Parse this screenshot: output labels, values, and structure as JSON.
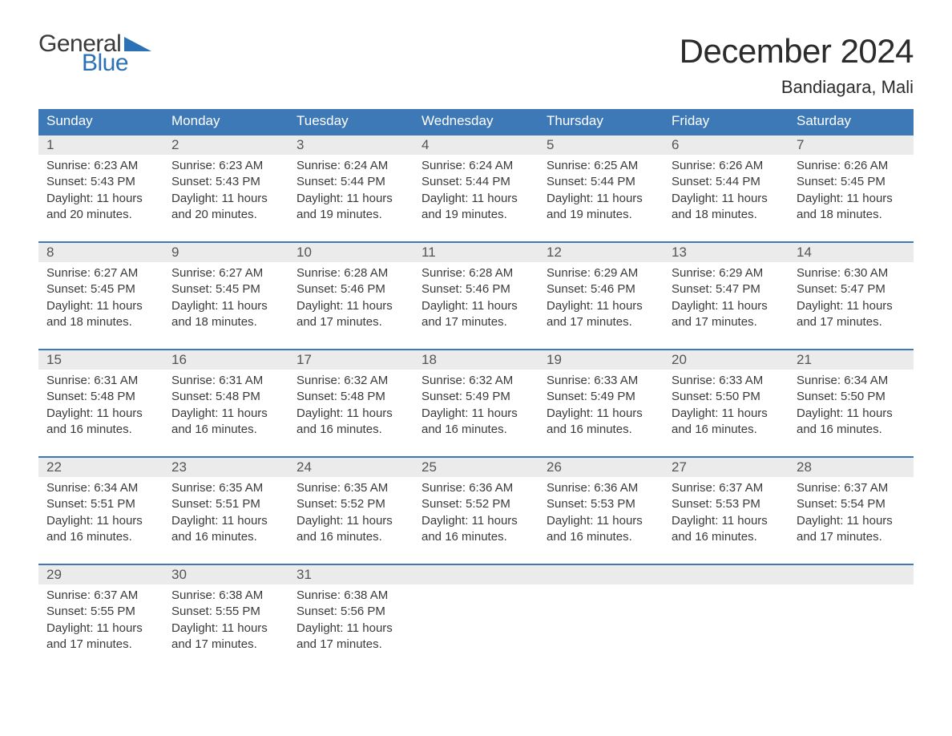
{
  "brand": {
    "word1": "General",
    "word2": "Blue",
    "accent_color": "#2a72b5",
    "text_color": "#3a3a3a"
  },
  "header": {
    "month_title": "December 2024",
    "location": "Bandiagara, Mali"
  },
  "colors": {
    "dow_bg": "#3d79b6",
    "dow_text": "#ffffff",
    "week_border": "#3d79b6",
    "daynum_bg": "#ebebeb",
    "daynum_text": "#555555",
    "body_text": "#3a3a3a",
    "page_bg": "#ffffff"
  },
  "days_of_week": [
    "Sunday",
    "Monday",
    "Tuesday",
    "Wednesday",
    "Thursday",
    "Friday",
    "Saturday"
  ],
  "weeks": [
    [
      {
        "n": "1",
        "sr": "Sunrise: 6:23 AM",
        "ss": "Sunset: 5:43 PM",
        "d1": "Daylight: 11 hours",
        "d2": "and 20 minutes."
      },
      {
        "n": "2",
        "sr": "Sunrise: 6:23 AM",
        "ss": "Sunset: 5:43 PM",
        "d1": "Daylight: 11 hours",
        "d2": "and 20 minutes."
      },
      {
        "n": "3",
        "sr": "Sunrise: 6:24 AM",
        "ss": "Sunset: 5:44 PM",
        "d1": "Daylight: 11 hours",
        "d2": "and 19 minutes."
      },
      {
        "n": "4",
        "sr": "Sunrise: 6:24 AM",
        "ss": "Sunset: 5:44 PM",
        "d1": "Daylight: 11 hours",
        "d2": "and 19 minutes."
      },
      {
        "n": "5",
        "sr": "Sunrise: 6:25 AM",
        "ss": "Sunset: 5:44 PM",
        "d1": "Daylight: 11 hours",
        "d2": "and 19 minutes."
      },
      {
        "n": "6",
        "sr": "Sunrise: 6:26 AM",
        "ss": "Sunset: 5:44 PM",
        "d1": "Daylight: 11 hours",
        "d2": "and 18 minutes."
      },
      {
        "n": "7",
        "sr": "Sunrise: 6:26 AM",
        "ss": "Sunset: 5:45 PM",
        "d1": "Daylight: 11 hours",
        "d2": "and 18 minutes."
      }
    ],
    [
      {
        "n": "8",
        "sr": "Sunrise: 6:27 AM",
        "ss": "Sunset: 5:45 PM",
        "d1": "Daylight: 11 hours",
        "d2": "and 18 minutes."
      },
      {
        "n": "9",
        "sr": "Sunrise: 6:27 AM",
        "ss": "Sunset: 5:45 PM",
        "d1": "Daylight: 11 hours",
        "d2": "and 18 minutes."
      },
      {
        "n": "10",
        "sr": "Sunrise: 6:28 AM",
        "ss": "Sunset: 5:46 PM",
        "d1": "Daylight: 11 hours",
        "d2": "and 17 minutes."
      },
      {
        "n": "11",
        "sr": "Sunrise: 6:28 AM",
        "ss": "Sunset: 5:46 PM",
        "d1": "Daylight: 11 hours",
        "d2": "and 17 minutes."
      },
      {
        "n": "12",
        "sr": "Sunrise: 6:29 AM",
        "ss": "Sunset: 5:46 PM",
        "d1": "Daylight: 11 hours",
        "d2": "and 17 minutes."
      },
      {
        "n": "13",
        "sr": "Sunrise: 6:29 AM",
        "ss": "Sunset: 5:47 PM",
        "d1": "Daylight: 11 hours",
        "d2": "and 17 minutes."
      },
      {
        "n": "14",
        "sr": "Sunrise: 6:30 AM",
        "ss": "Sunset: 5:47 PM",
        "d1": "Daylight: 11 hours",
        "d2": "and 17 minutes."
      }
    ],
    [
      {
        "n": "15",
        "sr": "Sunrise: 6:31 AM",
        "ss": "Sunset: 5:48 PM",
        "d1": "Daylight: 11 hours",
        "d2": "and 16 minutes."
      },
      {
        "n": "16",
        "sr": "Sunrise: 6:31 AM",
        "ss": "Sunset: 5:48 PM",
        "d1": "Daylight: 11 hours",
        "d2": "and 16 minutes."
      },
      {
        "n": "17",
        "sr": "Sunrise: 6:32 AM",
        "ss": "Sunset: 5:48 PM",
        "d1": "Daylight: 11 hours",
        "d2": "and 16 minutes."
      },
      {
        "n": "18",
        "sr": "Sunrise: 6:32 AM",
        "ss": "Sunset: 5:49 PM",
        "d1": "Daylight: 11 hours",
        "d2": "and 16 minutes."
      },
      {
        "n": "19",
        "sr": "Sunrise: 6:33 AM",
        "ss": "Sunset: 5:49 PM",
        "d1": "Daylight: 11 hours",
        "d2": "and 16 minutes."
      },
      {
        "n": "20",
        "sr": "Sunrise: 6:33 AM",
        "ss": "Sunset: 5:50 PM",
        "d1": "Daylight: 11 hours",
        "d2": "and 16 minutes."
      },
      {
        "n": "21",
        "sr": "Sunrise: 6:34 AM",
        "ss": "Sunset: 5:50 PM",
        "d1": "Daylight: 11 hours",
        "d2": "and 16 minutes."
      }
    ],
    [
      {
        "n": "22",
        "sr": "Sunrise: 6:34 AM",
        "ss": "Sunset: 5:51 PM",
        "d1": "Daylight: 11 hours",
        "d2": "and 16 minutes."
      },
      {
        "n": "23",
        "sr": "Sunrise: 6:35 AM",
        "ss": "Sunset: 5:51 PM",
        "d1": "Daylight: 11 hours",
        "d2": "and 16 minutes."
      },
      {
        "n": "24",
        "sr": "Sunrise: 6:35 AM",
        "ss": "Sunset: 5:52 PM",
        "d1": "Daylight: 11 hours",
        "d2": "and 16 minutes."
      },
      {
        "n": "25",
        "sr": "Sunrise: 6:36 AM",
        "ss": "Sunset: 5:52 PM",
        "d1": "Daylight: 11 hours",
        "d2": "and 16 minutes."
      },
      {
        "n": "26",
        "sr": "Sunrise: 6:36 AM",
        "ss": "Sunset: 5:53 PM",
        "d1": "Daylight: 11 hours",
        "d2": "and 16 minutes."
      },
      {
        "n": "27",
        "sr": "Sunrise: 6:37 AM",
        "ss": "Sunset: 5:53 PM",
        "d1": "Daylight: 11 hours",
        "d2": "and 16 minutes."
      },
      {
        "n": "28",
        "sr": "Sunrise: 6:37 AM",
        "ss": "Sunset: 5:54 PM",
        "d1": "Daylight: 11 hours",
        "d2": "and 17 minutes."
      }
    ],
    [
      {
        "n": "29",
        "sr": "Sunrise: 6:37 AM",
        "ss": "Sunset: 5:55 PM",
        "d1": "Daylight: 11 hours",
        "d2": "and 17 minutes."
      },
      {
        "n": "30",
        "sr": "Sunrise: 6:38 AM",
        "ss": "Sunset: 5:55 PM",
        "d1": "Daylight: 11 hours",
        "d2": "and 17 minutes."
      },
      {
        "n": "31",
        "sr": "Sunrise: 6:38 AM",
        "ss": "Sunset: 5:56 PM",
        "d1": "Daylight: 11 hours",
        "d2": "and 17 minutes."
      },
      null,
      null,
      null,
      null
    ]
  ]
}
